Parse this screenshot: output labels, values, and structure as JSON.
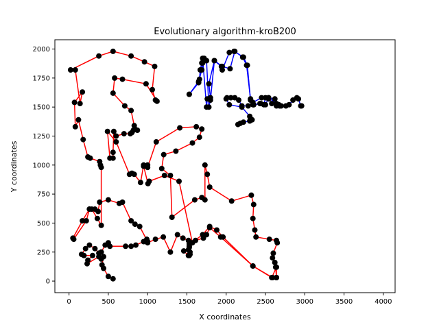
{
  "chart_data": {
    "type": "line",
    "title": "Evolutionary algorithm-kroB200",
    "xlabel": "X coordinates",
    "ylabel": "Y coordinates",
    "xlim": [
      -180,
      4150
    ],
    "ylim": [
      -100,
      2080
    ],
    "xticks": [
      0,
      500,
      1000,
      1500,
      2000,
      2500,
      3000,
      3500,
      4000
    ],
    "yticks": [
      0,
      250,
      500,
      750,
      1000,
      1250,
      1500,
      1750,
      2000
    ],
    "grid": false,
    "point_color": "#000000",
    "series": [
      {
        "color": "#ff0000",
        "x": [
          2640,
          2630,
          2620,
          2590,
          2600,
          2650,
          2640,
          2550,
          2380,
          2365,
          2340,
          2350,
          2320,
          2070,
          1790,
          1760,
          1730,
          1730,
          1690,
          1600,
          1310,
          1290,
          1180,
          1205,
          1360,
          1570,
          1660,
          1690,
          1620,
          1410,
          1110,
          1000,
          1000,
          950,
          1005,
          1020,
          1215,
          1400,
          1570,
          1530,
          1460,
          1520,
          1520,
          1530,
          1610,
          1710,
          1750,
          1790,
          1930,
          2340,
          2580,
          2640,
          2640
        ],
        "y": [
          30,
          120,
          160,
          200,
          240,
          330,
          350,
          360,
          380,
          440,
          540,
          660,
          740,
          690,
          810,
          920,
          1000,
          700,
          720,
          700,
          550,
          910,
          970,
          1090,
          1120,
          1190,
          1240,
          1310,
          1330,
          1320,
          1200,
          980,
          1000,
          990,
          840,
          860,
          910,
          860,
          330,
          290,
          260,
          220,
          270,
          320,
          350,
          370,
          400,
          460,
          380,
          130,
          30,
          120,
          30
        ]
      },
      {
        "color": "#ff0000",
        "x": [
          1000,
          1100,
          1200,
          1290,
          1380,
          1450,
          1520,
          1530,
          1540,
          1530,
          1540,
          1560,
          1700,
          1790,
          1880,
          1960,
          2340,
          2590
        ],
        "y": [
          330,
          360,
          380,
          250,
          400,
          370,
          350,
          300,
          230,
          220,
          250,
          330,
          400,
          470,
          440,
          380,
          130,
          30
        ]
      },
      {
        "color": "#ff0000",
        "x": [
          560,
          500,
          440,
          420,
          440,
          410,
          380,
          330,
          260,
          210,
          160,
          190,
          300,
          240,
          230,
          380,
          410,
          460,
          500,
          520,
          720,
          790,
          850,
          950,
          990,
          1000,
          900,
          840,
          790,
          680,
          640,
          500,
          390,
          370,
          330,
          260,
          170,
          50,
          60,
          220,
          260,
          290,
          360,
          410,
          410,
          400,
          390,
          270,
          240,
          180,
          120,
          80,
          70,
          170,
          140,
          80,
          20,
          380,
          560,
          790,
          960,
          1090,
          1060,
          1100,
          1120,
          980,
          680,
          580,
          560,
          710,
          790,
          830,
          870,
          840,
          820,
          800,
          780,
          700,
          600,
          570,
          560,
          560,
          520,
          490,
          600,
          770,
          800,
          830,
          910,
          950
        ],
        "y": [
          20,
          40,
          110,
          140,
          210,
          190,
          240,
          280,
          310,
          280,
          230,
          220,
          220,
          180,
          150,
          210,
          250,
          310,
          330,
          300,
          300,
          300,
          310,
          340,
          360,
          340,
          470,
          490,
          520,
          680,
          670,
          700,
          680,
          600,
          620,
          620,
          520,
          370,
          360,
          520,
          620,
          620,
          540,
          480,
          980,
          1000,
          1030,
          1060,
          1070,
          1220,
          1390,
          1330,
          1540,
          1630,
          1530,
          1820,
          1820,
          1940,
          1980,
          1940,
          1890,
          1850,
          1650,
          1560,
          1550,
          1700,
          1740,
          1750,
          1620,
          1510,
          1470,
          1340,
          1300,
          1310,
          1300,
          1280,
          1270,
          1270,
          1250,
          1290,
          1110,
          1060,
          1060,
          1290,
          1200,
          920,
          930,
          920,
          850,
          1000
        ]
      },
      {
        "color": "#0000ff",
        "x": [
          1530,
          1650,
          1660,
          1670,
          1690,
          1700,
          1750,
          1760,
          1800,
          1780,
          1850,
          1940,
          1950,
          2040,
          2100,
          2220,
          2270,
          2310,
          2350,
          2430,
          2480,
          2500,
          2540,
          2580,
          2640,
          2680,
          2670,
          2620,
          2540,
          2450,
          2340,
          2280,
          2200,
          2160,
          2110,
          2060,
          2010,
          2000,
          2040,
          2200,
          2300,
          2310,
          2330,
          2300,
          2220,
          2180,
          2150
        ],
        "y": [
          1610,
          1710,
          1740,
          1820,
          1880,
          1920,
          1500,
          1570,
          1580,
          1700,
          1900,
          1850,
          1820,
          1970,
          1980,
          1930,
          1860,
          1560,
          1520,
          1530,
          1520,
          1580,
          1570,
          1530,
          1510,
          1510,
          1520,
          1570,
          1580,
          1580,
          1540,
          1510,
          1510,
          1560,
          1580,
          1580,
          1580,
          1570,
          1520,
          1500,
          1420,
          1400,
          1390,
          1380,
          1370,
          1360,
          1350
        ]
      },
      {
        "color": "#0000ff",
        "x": [
          1530,
          1650,
          1690,
          1700,
          1720,
          1750,
          1780,
          1800,
          1850,
          1950,
          2050,
          2110,
          2210,
          2260,
          2310,
          2340,
          2350,
          2440,
          2500,
          2540,
          2640,
          2700,
          2760,
          2800,
          2850,
          2900,
          2920,
          2950,
          2960
        ],
        "y": [
          1610,
          1720,
          1820,
          1880,
          1920,
          1900,
          1500,
          1560,
          1900,
          1850,
          1830,
          1980,
          1930,
          1860,
          1570,
          1520,
          1520,
          1530,
          1520,
          1580,
          1530,
          1510,
          1510,
          1520,
          1560,
          1580,
          1570,
          1510,
          1510
        ]
      }
    ]
  }
}
